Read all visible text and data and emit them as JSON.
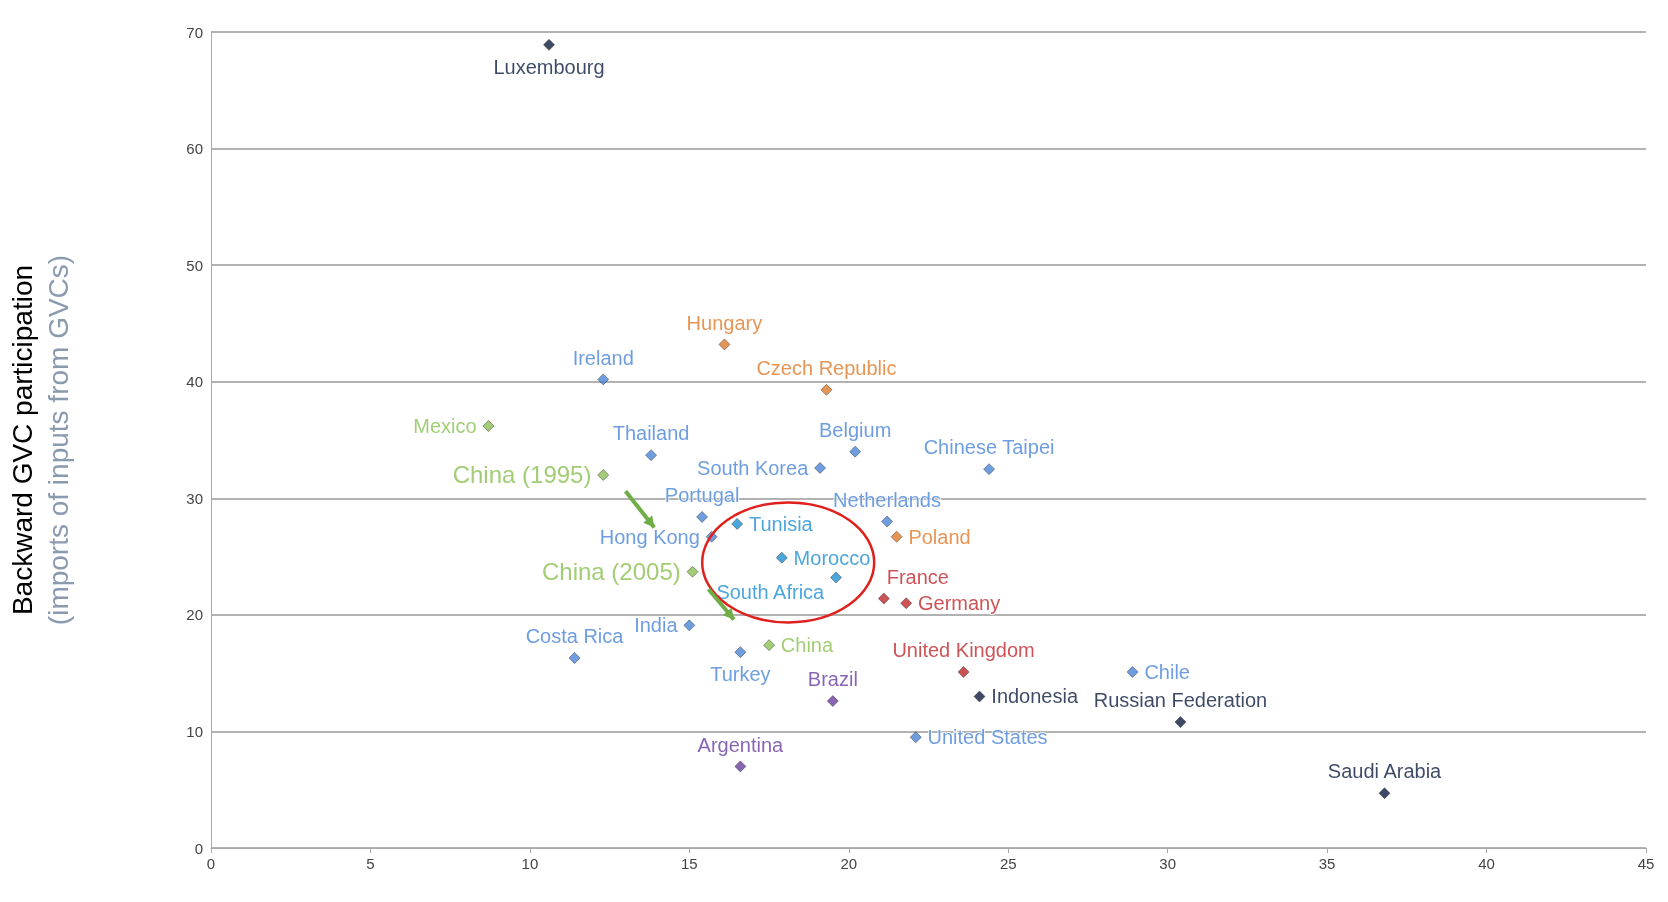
{
  "chart_data": {
    "type": "scatter",
    "ylabel": "Backward GVC participation\n(imports of inputs from GVCs)",
    "xlim": [
      0,
      45
    ],
    "xticks": [
      0,
      5,
      10,
      15,
      20,
      25,
      30,
      35,
      40,
      45
    ],
    "ylim": [
      0,
      70
    ],
    "yticks": [
      0,
      10,
      20,
      30,
      40,
      50,
      60,
      70
    ],
    "grid": "y",
    "legend": false,
    "marker": "diamond",
    "series": [
      {
        "name": "Luxembourg",
        "color": "#0d1b3e",
        "x": [
          10.6
        ],
        "values": [
          68.9
        ]
      },
      {
        "name": "Hungary",
        "color": "#e07b2a",
        "x": [
          16.1
        ],
        "values": [
          43.2
        ]
      },
      {
        "name": "Ireland",
        "color": "#4a86d8",
        "x": [
          12.3
        ],
        "values": [
          40.2
        ]
      },
      {
        "name": "Czech Republic",
        "color": "#e07b2a",
        "x": [
          19.3
        ],
        "values": [
          39.3
        ]
      },
      {
        "name": "Mexico",
        "color": "#8cc152",
        "x": [
          8.7
        ],
        "values": [
          36.2
        ]
      },
      {
        "name": "Thailand",
        "color": "#4a86d8",
        "x": [
          13.8
        ],
        "values": [
          33.7
        ]
      },
      {
        "name": "South Korea",
        "color": "#4a86d8",
        "x": [
          19.1
        ],
        "values": [
          32.6
        ]
      },
      {
        "name": "Belgium",
        "color": "#4a86d8",
        "x": [
          20.2
        ],
        "values": [
          34.0
        ]
      },
      {
        "name": "Chinese Taipei",
        "color": "#4a86d8",
        "x": [
          24.4
        ],
        "values": [
          32.5
        ]
      },
      {
        "name": "China (1995)",
        "color": "#8cc152",
        "x": [
          12.3
        ],
        "values": [
          32.0
        ]
      },
      {
        "name": "Portugal",
        "color": "#4a86d8",
        "x": [
          15.4
        ],
        "values": [
          28.4
        ]
      },
      {
        "name": "Tunisia",
        "color": "#1e90d6",
        "x": [
          16.5
        ],
        "values": [
          27.8
        ]
      },
      {
        "name": "Netherlands",
        "color": "#4a86d8",
        "x": [
          21.2
        ],
        "values": [
          28.0
        ]
      },
      {
        "name": "Poland",
        "color": "#e07b2a",
        "x": [
          21.5
        ],
        "values": [
          26.7
        ]
      },
      {
        "name": "Hong Kong",
        "color": "#4a86d8",
        "x": [
          15.7
        ],
        "values": [
          26.7
        ]
      },
      {
        "name": "Morocco",
        "color": "#1e90d6",
        "x": [
          17.9
        ],
        "values": [
          24.9
        ]
      },
      {
        "name": "China (2005)",
        "color": "#8cc152",
        "x": [
          15.1
        ],
        "values": [
          23.7
        ]
      },
      {
        "name": "South Africa",
        "color": "#1e90d6",
        "x": [
          19.6
        ],
        "values": [
          23.2
        ]
      },
      {
        "name": "France",
        "color": "#c0282d",
        "x": [
          21.1
        ],
        "values": [
          21.4
        ]
      },
      {
        "name": "Germany",
        "color": "#c0282d",
        "x": [
          21.8
        ],
        "values": [
          21.0
        ]
      },
      {
        "name": "India",
        "color": "#4a86d8",
        "x": [
          15.0
        ],
        "values": [
          19.1
        ]
      },
      {
        "name": "China",
        "color": "#8cc152",
        "x": [
          17.5
        ],
        "values": [
          17.4
        ]
      },
      {
        "name": "Turkey",
        "color": "#4a86d8",
        "x": [
          16.6
        ],
        "values": [
          16.8
        ]
      },
      {
        "name": "Costa Rica",
        "color": "#4a86d8",
        "x": [
          11.4
        ],
        "values": [
          16.3
        ]
      },
      {
        "name": "United Kingdom",
        "color": "#c0282d",
        "x": [
          23.6
        ],
        "values": [
          15.1
        ]
      },
      {
        "name": "Chile",
        "color": "#4a86d8",
        "x": [
          28.9
        ],
        "values": [
          15.1
        ]
      },
      {
        "name": "Indonesia",
        "color": "#0d1b3e",
        "x": [
          24.1
        ],
        "values": [
          13.0
        ]
      },
      {
        "name": "Brazil",
        "color": "#6a3fa0",
        "x": [
          19.5
        ],
        "values": [
          12.6
        ]
      },
      {
        "name": "Russian Federation",
        "color": "#0d1b3e",
        "x": [
          30.4
        ],
        "values": [
          10.8
        ]
      },
      {
        "name": "United States",
        "color": "#4a86d8",
        "x": [
          22.1
        ],
        "values": [
          9.5
        ]
      },
      {
        "name": "Argentina",
        "color": "#6a3fa0",
        "x": [
          16.6
        ],
        "values": [
          7.0
        ]
      },
      {
        "name": "Saudi Arabia",
        "color": "#0d1b3e",
        "x": [
          36.8
        ],
        "values": [
          4.7
        ]
      }
    ]
  }
}
